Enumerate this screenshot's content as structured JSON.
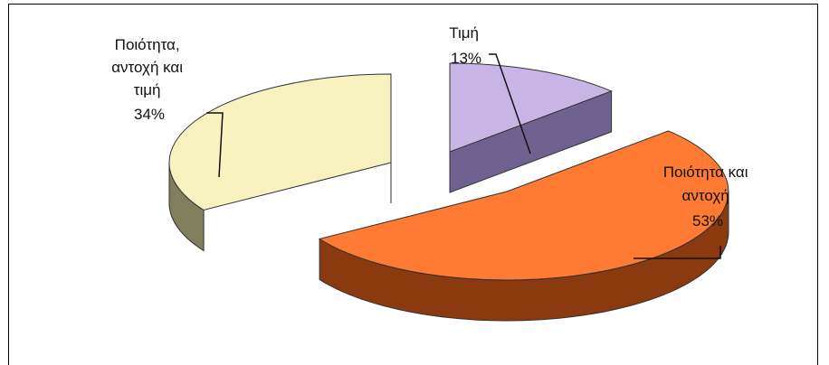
{
  "chart_data": {
    "type": "pie",
    "style": "3d-exploded",
    "categories": [
      "Ποιότητα, αντοχή και τιμή",
      "Τιμή",
      "Ποιότητα και αντοχή"
    ],
    "values": [
      34,
      13,
      53
    ],
    "unit": "%",
    "colors": {
      "top": [
        "#f7f2c0",
        "#c9b4e6",
        "#ff7a33"
      ],
      "side": [
        "#7f7f5c",
        "#6f6190",
        "#8a3a0e"
      ]
    },
    "labels": [
      {
        "lines": [
          "Ποιότητα,",
          "αντοχή και",
          "τιμή"
        ],
        "pct": "34%"
      },
      {
        "lines": [
          "Τιμή"
        ],
        "pct": "13%"
      },
      {
        "lines": [
          "Ποιότητα και",
          "αντοχή"
        ],
        "pct": "53%"
      }
    ],
    "legend": "none"
  }
}
